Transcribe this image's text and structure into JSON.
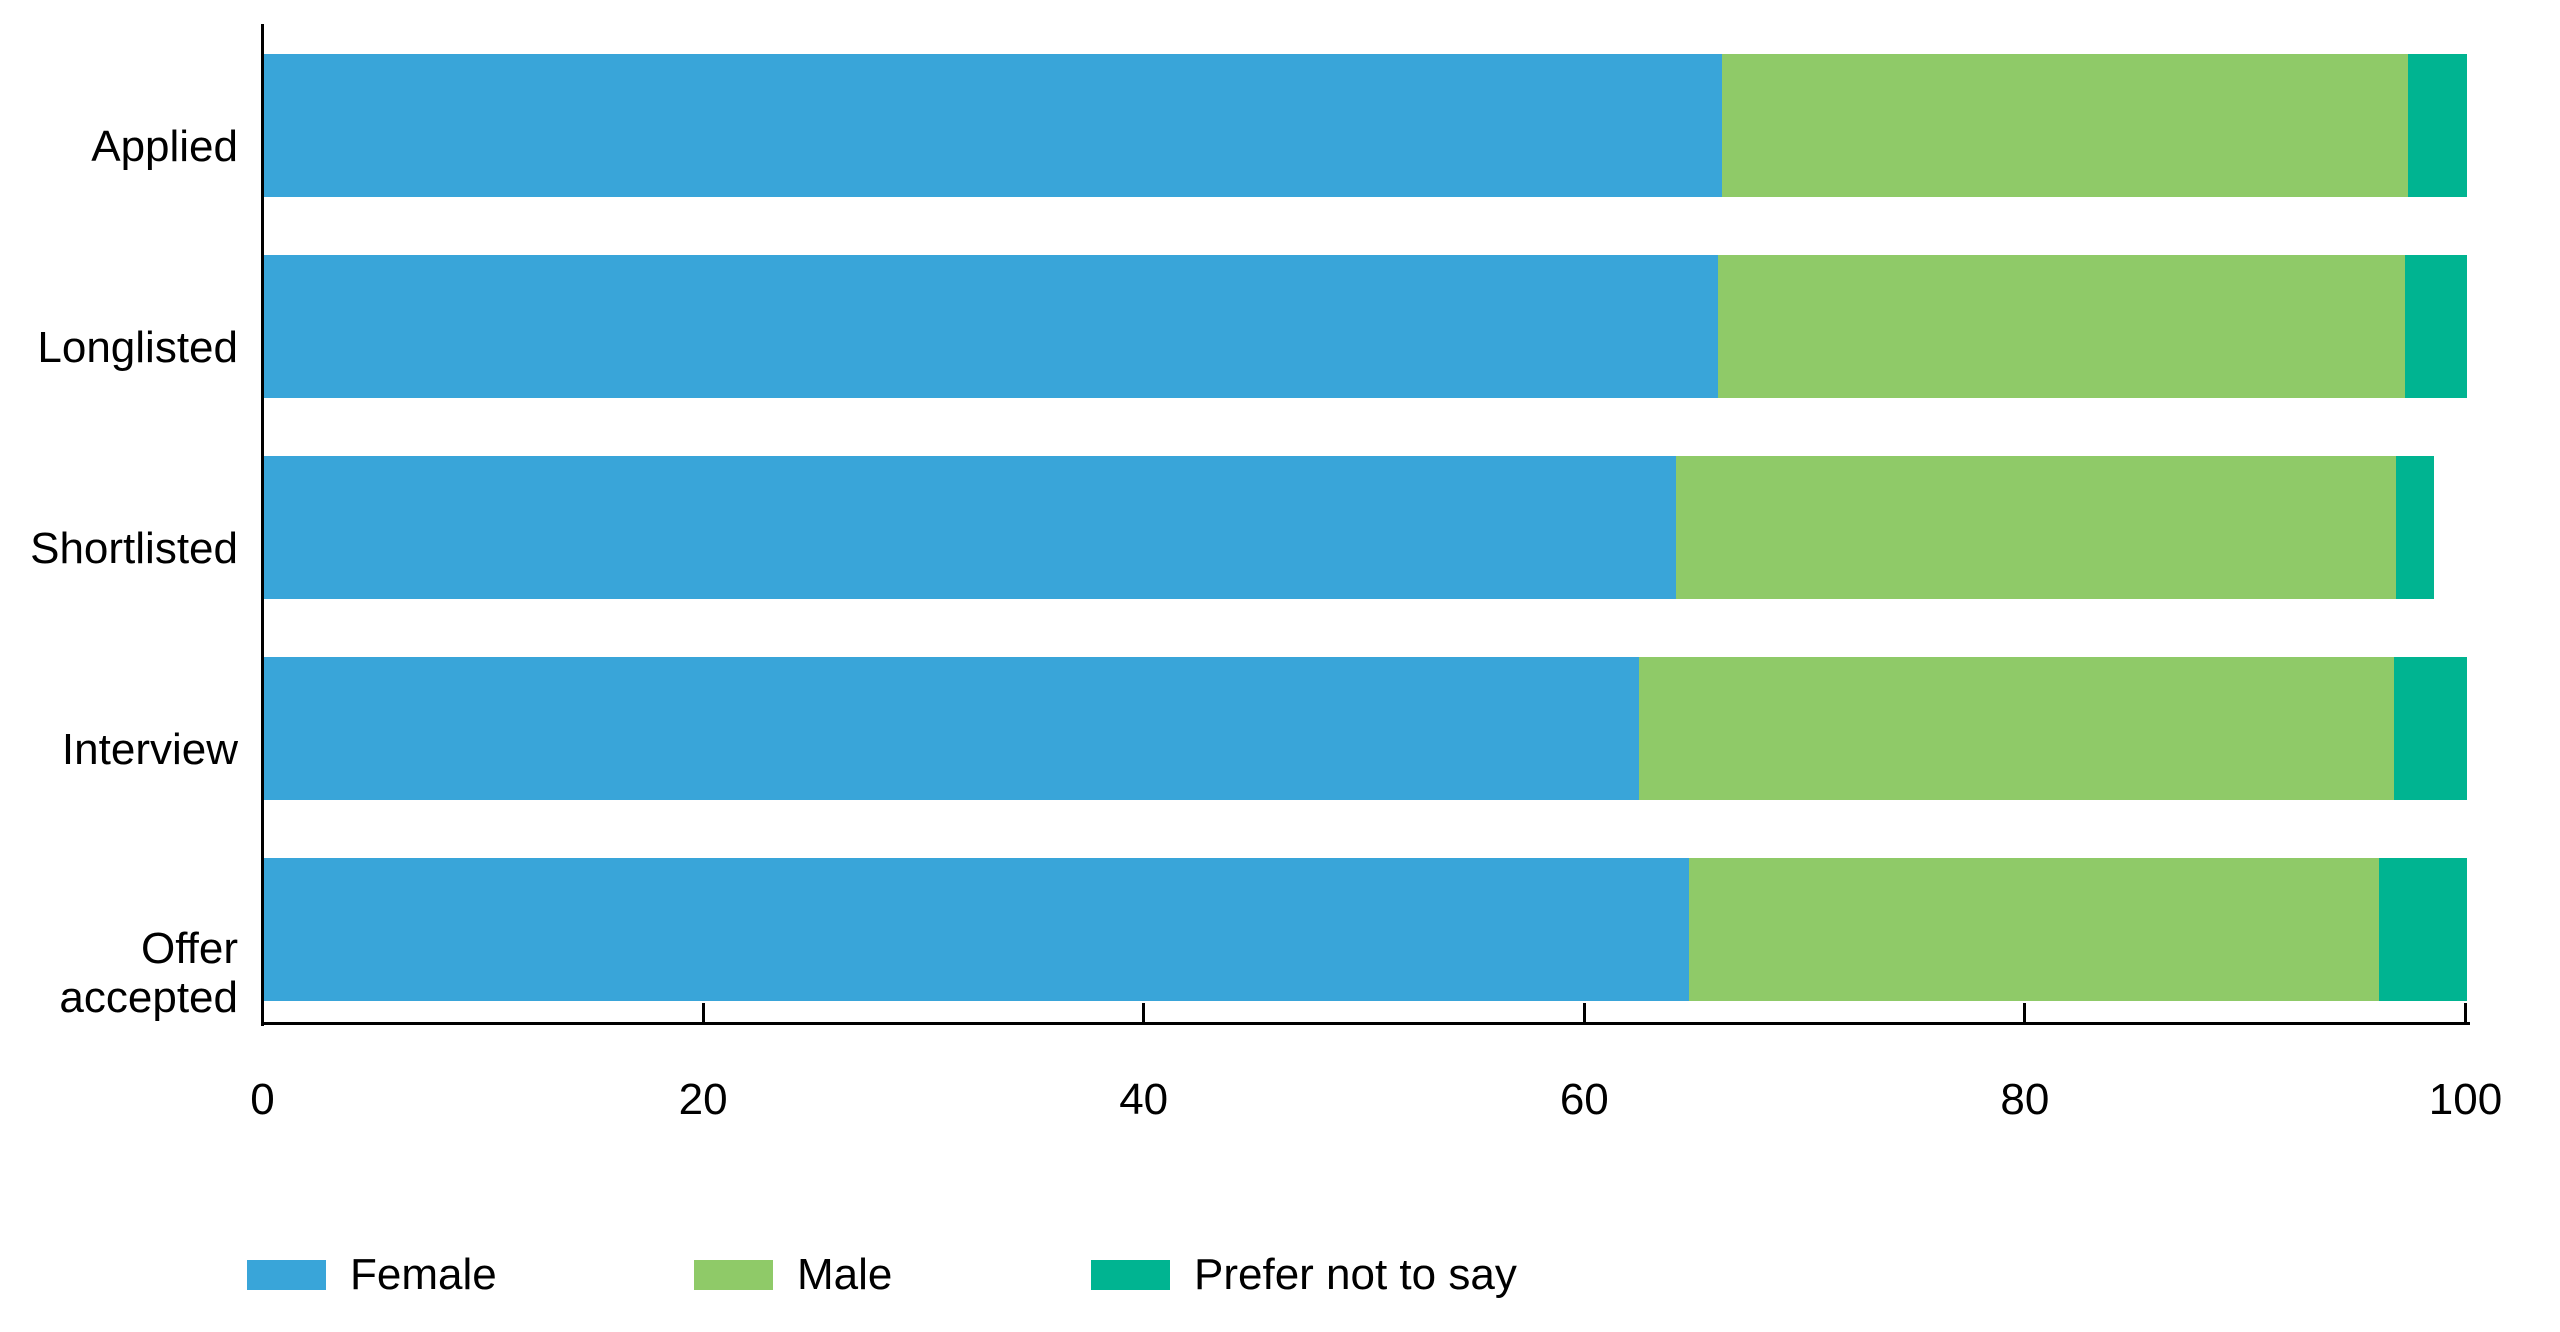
{
  "chart_data": {
    "type": "bar",
    "orientation": "horizontal",
    "stacked": true,
    "title": "",
    "xlabel": "",
    "ylabel": "",
    "categories": [
      "Applied",
      "Longlisted",
      "Shortlisted",
      "Interview",
      "Offer accepted"
    ],
    "series": [
      {
        "name": "Female",
        "color": "#39A5D9",
        "values": [
          66.2,
          66.0,
          64.1,
          62.4,
          64.7
        ]
      },
      {
        "name": "Male",
        "color": "#8FCA68",
        "values": [
          31.1,
          31.2,
          32.7,
          34.3,
          31.3
        ]
      },
      {
        "name": "Prefer not to say",
        "color": "#00B491",
        "values": [
          2.7,
          2.8,
          1.7,
          3.3,
          4.0
        ]
      }
    ],
    "row_totals": [
      100.0,
      100.0,
      98.5,
      100.0,
      100.0
    ],
    "xlim": [
      0,
      100
    ],
    "x_ticks": [
      0,
      20,
      40,
      60,
      80,
      100
    ],
    "grid": false,
    "legend_position": "bottom",
    "axis_color": "#000000",
    "background_color": "#ffffff"
  }
}
